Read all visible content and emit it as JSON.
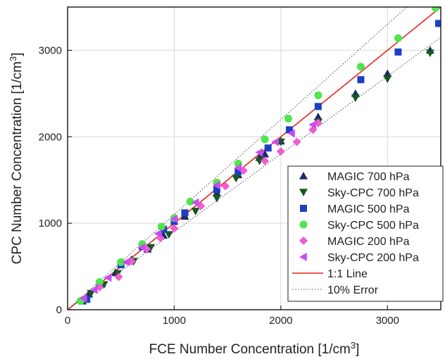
{
  "chart_data": {
    "type": "scatter",
    "title": "",
    "xlabel_main": "FCE Number Concentration [1/cm",
    "xlabel_sup": "3",
    "xlabel_end": "]",
    "ylabel_main": "CPC Number Concentration [1/cm",
    "ylabel_sup": "3",
    "ylabel_end": "]",
    "xlim": [
      0,
      3500
    ],
    "ylim": [
      0,
      3500
    ],
    "xticks": [
      0,
      1000,
      2000,
      3000
    ],
    "yticks": [
      0,
      1000,
      2000,
      3000
    ],
    "grid": true,
    "legend_position": "bottom-right",
    "series": [
      {
        "name": "MAGIC 700 hPa",
        "marker": "triangle-up",
        "color": "#1a2a6c",
        "x": [
          140,
          200,
          320,
          450,
          600,
          750,
          900,
          1100,
          1400,
          1600,
          1800,
          1850,
          2000,
          2350,
          2700,
          3000,
          3400
        ],
        "y": [
          100,
          180,
          300,
          430,
          580,
          700,
          860,
          1080,
          1350,
          1560,
          1760,
          1800,
          1950,
          2230,
          2500,
          2730,
          3000
        ]
      },
      {
        "name": "Sky-CPC 700 hPa",
        "marker": "triangle-down",
        "color": "#15581f",
        "x": [
          160,
          220,
          340,
          470,
          620,
          780,
          950,
          1200,
          1400,
          1580,
          1800,
          2000,
          2350,
          2700,
          3000,
          3400
        ],
        "y": [
          110,
          190,
          290,
          420,
          560,
          720,
          870,
          1140,
          1290,
          1520,
          1720,
          1940,
          2170,
          2450,
          2670,
          2970
        ]
      },
      {
        "name": "MAGIC 500 hPa",
        "marker": "square",
        "color": "#1c3fc4",
        "x": [
          180,
          300,
          500,
          700,
          900,
          1000,
          1100,
          1400,
          1600,
          1880,
          2080,
          2350,
          2750,
          3100,
          3480
        ],
        "y": [
          120,
          300,
          520,
          730,
          930,
          1020,
          1120,
          1390,
          1600,
          1870,
          2080,
          2350,
          2660,
          2980,
          3310
        ]
      },
      {
        "name": "Sky-CPC 500 hPa",
        "marker": "circle",
        "color": "#4de64d",
        "x": [
          120,
          300,
          500,
          700,
          880,
          1000,
          1150,
          1400,
          1600,
          1850,
          2070,
          2350,
          2750,
          3100,
          3450
        ],
        "y": [
          100,
          320,
          550,
          760,
          960,
          1060,
          1250,
          1470,
          1690,
          1970,
          2210,
          2480,
          2810,
          3140,
          3490
        ]
      },
      {
        "name": "MAGIC 200 hPa",
        "marker": "diamond",
        "color": "#f05cd2",
        "x": [
          300,
          480,
          600,
          740,
          870,
          1000,
          1250,
          1480,
          1650,
          1850,
          2000,
          2150,
          2300,
          2350
        ],
        "y": [
          260,
          380,
          560,
          700,
          830,
          940,
          1200,
          1430,
          1610,
          1720,
          1830,
          1940,
          2080,
          2160
        ]
      },
      {
        "name": "Sky-CPC 200 hPa",
        "marker": "triangle-left",
        "color": "#c94df2",
        "x": [
          150,
          250,
          380,
          550,
          700,
          850,
          1000,
          1200,
          1400,
          1600,
          1800,
          1950,
          2100,
          2300
        ],
        "y": [
          130,
          230,
          370,
          550,
          720,
          880,
          1050,
          1240,
          1440,
          1640,
          1820,
          1940,
          2040,
          2140
        ]
      }
    ],
    "lines": [
      {
        "name": "1:1 Line",
        "style": "solid",
        "color": "#e8231a",
        "slope": 1
      },
      {
        "name": "10% Error",
        "style": "dotted",
        "color": "#555555",
        "slopes": [
          1.1,
          0.9
        ]
      }
    ]
  }
}
